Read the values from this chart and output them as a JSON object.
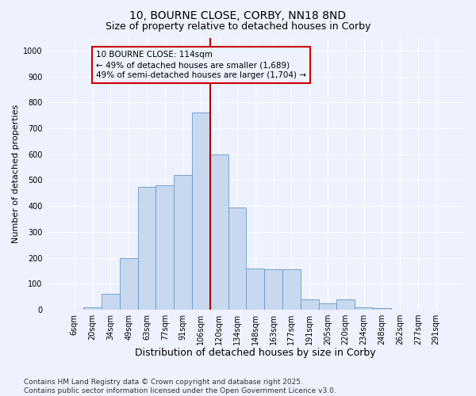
{
  "title": "10, BOURNE CLOSE, CORBY, NN18 8ND",
  "subtitle": "Size of property relative to detached houses in Corby",
  "xlabel": "Distribution of detached houses by size in Corby",
  "ylabel": "Number of detached properties",
  "footer": "Contains HM Land Registry data © Crown copyright and database right 2025.\nContains public sector information licensed under the Open Government Licence v3.0.",
  "categories": [
    "6sqm",
    "20sqm",
    "34sqm",
    "49sqm",
    "63sqm",
    "77sqm",
    "91sqm",
    "106sqm",
    "120sqm",
    "134sqm",
    "148sqm",
    "163sqm",
    "177sqm",
    "191sqm",
    "205sqm",
    "220sqm",
    "234sqm",
    "248sqm",
    "262sqm",
    "277sqm",
    "291sqm"
  ],
  "values": [
    0,
    10,
    60,
    200,
    475,
    480,
    520,
    760,
    600,
    395,
    160,
    155,
    155,
    40,
    25,
    40,
    10,
    5,
    0,
    0,
    0
  ],
  "bar_color": "#c8d8ee",
  "bar_edge_color": "#6699cc",
  "vline_color": "#aa0000",
  "annotation_box_text": "10 BOURNE CLOSE: 114sqm\n← 49% of detached houses are smaller (1,689)\n49% of semi-detached houses are larger (1,704) →",
  "annotation_box_color": "#cc0000",
  "ylim": [
    0,
    1050
  ],
  "yticks": [
    0,
    100,
    200,
    300,
    400,
    500,
    600,
    700,
    800,
    900,
    1000
  ],
  "background_color": "#eef2ff",
  "grid_color": "#ffffff",
  "title_fontsize": 10,
  "subtitle_fontsize": 9,
  "xlabel_fontsize": 9,
  "ylabel_fontsize": 8,
  "tick_fontsize": 7,
  "ann_fontsize": 7.5,
  "footer_fontsize": 6.5
}
